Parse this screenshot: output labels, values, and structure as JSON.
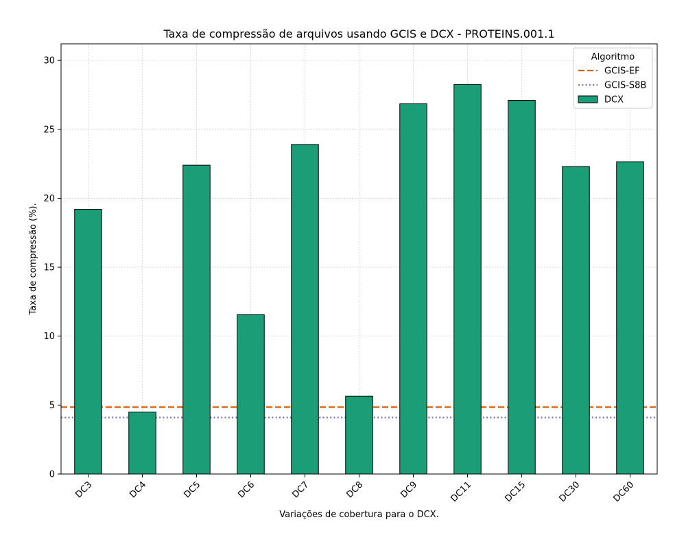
{
  "chart_data": {
    "type": "bar",
    "title": "Taxa de compressão de arquivos usando GCIS e DCX -  PROTEINS.001.1",
    "xlabel": "Variações de cobertura para o DCX.",
    "ylabel": "Taxa de compressão (%).",
    "ylim": [
      0,
      31.2
    ],
    "yticks": [
      0,
      5,
      10,
      15,
      20,
      25,
      30
    ],
    "grid": true,
    "categories": [
      "DC3",
      "DC4",
      "DC5",
      "DC6",
      "DC7",
      "DC8",
      "DC9",
      "DC11",
      "DC15",
      "DC30",
      "DC60"
    ],
    "series": [
      {
        "name": "DCX",
        "values": [
          19.2,
          4.5,
          22.4,
          11.55,
          23.9,
          5.65,
          26.85,
          28.25,
          27.1,
          22.3,
          22.65
        ],
        "color": "#1b9e77"
      }
    ],
    "reference_lines": [
      {
        "name": "GCIS-EF",
        "value": 4.85,
        "color": "#d95f02",
        "style": "dashed"
      },
      {
        "name": "GCIS-S8B",
        "value": 4.1,
        "color": "#7570b3",
        "style": "dotted"
      }
    ],
    "legend": {
      "title": "Algoritmo",
      "placement": "top-right"
    }
  }
}
